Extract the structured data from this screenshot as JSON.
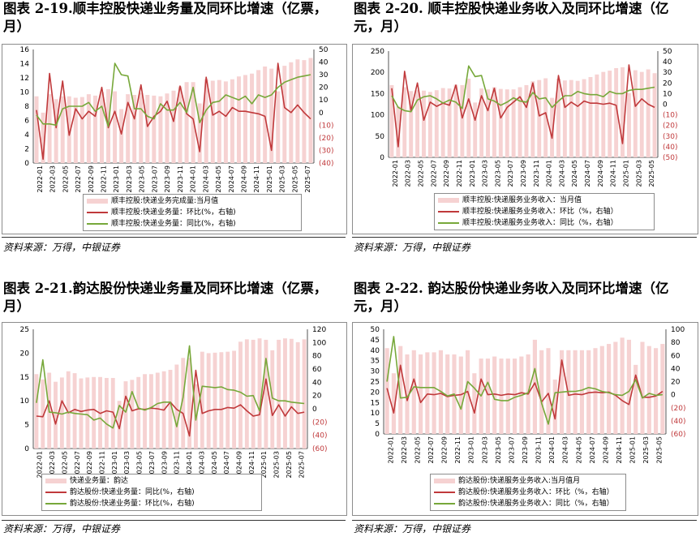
{
  "source_label": "资料来源：万得，中银证券",
  "colors": {
    "bar": "#f6d2d2",
    "red": "#c0393b",
    "green": "#77a83a",
    "axis_right": "#c0393b"
  },
  "chart_data": [
    {
      "id": "c1",
      "type": "bar+line",
      "title": "图表 2-19.顺丰控股快递业务量及同环比增速（亿票，月）",
      "left_axis": {
        "min": 0,
        "max": 16,
        "ticks": [
          "0",
          "2",
          "4",
          "6",
          "8",
          "10",
          "12",
          "14",
          "16"
        ]
      },
      "right_axis": {
        "min": -40,
        "max": 50,
        "ticks": [
          "(40)",
          "(30)",
          "(20)",
          "(10)",
          "0",
          "10",
          "20",
          "30",
          "40",
          "50"
        ]
      },
      "x_ticks": [
        "2022-01",
        "2022-03",
        "2022-05",
        "2022-07",
        "2022-09",
        "2022-11",
        "2023-01",
        "2023-03",
        "2023-05",
        "2023-07",
        "2023-09",
        "2023-11",
        "2024-01",
        "2024-03",
        "2024-05",
        "2024-07",
        "2024-09",
        "2024-11",
        "2025-01",
        "2025-03",
        "2025-05",
        "2025-07"
      ],
      "legend": [
        "顺丰控股:快递业务完成量:当月值",
        "顺丰控股:快递业务量：环比(%，右轴)",
        "顺丰控股:快递业务量：同比(%，右轴)"
      ],
      "bars": [
        9.4,
        7.1,
        9.7,
        9.0,
        9.4,
        9.4,
        9.2,
        9.3,
        9.7,
        9.5,
        10.0,
        10.4,
        10.1,
        7.6,
        9.7,
        9.6,
        9.9,
        9.6,
        9.5,
        9.4,
        9.8,
        10.2,
        10.8,
        11.4,
        11.4,
        8.4,
        11.8,
        11.6,
        11.7,
        11.5,
        11.8,
        12.2,
        12.4,
        12.6,
        13.1,
        13.6,
        13.3,
        10.1,
        13.7,
        14.2,
        14.6,
        14.5,
        14.8
      ],
      "mom": [
        2,
        -37,
        31,
        -12,
        25,
        -18,
        3,
        -5,
        1,
        -3,
        20,
        -12,
        1,
        -17,
        8,
        -5,
        22,
        -11,
        -3,
        1,
        9,
        -7,
        21,
        -1,
        -5,
        -31,
        28,
        -2,
        1,
        -3,
        4,
        1,
        1,
        0,
        -1,
        -3,
        -30,
        39,
        4,
        0,
        6,
        0,
        -5
      ],
      "yoy": [
        -2,
        -9,
        -9,
        -10,
        3,
        5,
        5,
        5,
        8,
        1,
        5,
        -11,
        39,
        30,
        29,
        3,
        3,
        -3,
        -5,
        7,
        2,
        2,
        8,
        0,
        20,
        -8,
        2,
        8,
        9,
        14,
        12,
        10,
        13,
        7,
        14,
        12,
        14,
        20,
        24,
        26,
        28,
        29,
        30
      ]
    },
    {
      "id": "c2",
      "type": "bar+line",
      "title": "图表 2-20. 顺丰控股快递业务收入及同环比增速（亿元，月）",
      "left_axis": {
        "min": 0,
        "max": 250,
        "ticks": [
          "0",
          "50",
          "100",
          "150",
          "200",
          "250"
        ]
      },
      "right_axis": {
        "min": -50,
        "max": 50,
        "ticks": [
          "(50)",
          "(40)",
          "(30)",
          "(20)",
          "(10)",
          "0",
          "10",
          "20",
          "30",
          "40",
          "50"
        ]
      },
      "x_ticks": [
        "2022-01",
        "2022-03",
        "2022-05",
        "2022-07",
        "2022-09",
        "2022-11",
        "2023-01",
        "2023-03",
        "2023-05",
        "2023-07",
        "2023-09",
        "2023-11",
        "2024-01",
        "2024-03",
        "2024-05",
        "2024-07",
        "2024-09",
        "2024-11",
        "2025-01",
        "2025-03",
        "2025-05"
      ],
      "legend": [
        "顺丰控股:快递服务业务收入：当月值",
        "顺丰控股:快递服务业务收入：环比（%，右轴）",
        "顺丰控股:快递服务业务收入：同比（%，右轴）"
      ],
      "bars": [
        170,
        120,
        165,
        156,
        158,
        157,
        154,
        158,
        163,
        162,
        171,
        170,
        185,
        129,
        162,
        160,
        165,
        161,
        160,
        160,
        165,
        170,
        179,
        182,
        186,
        140,
        185,
        181,
        182,
        180,
        184,
        189,
        195,
        201,
        204,
        210,
        212,
        151,
        205,
        201,
        207,
        198
      ],
      "mom": [
        15,
        -40,
        31,
        -6,
        20,
        -15,
        2,
        -2,
        1,
        -1,
        18,
        -13,
        5,
        -15,
        8,
        -6,
        15,
        -13,
        -3,
        2,
        7,
        -3,
        20,
        -11,
        -8,
        -32,
        27,
        -3,
        2,
        -2,
        3,
        1,
        1,
        0,
        1,
        -1,
        -37,
        37,
        -2,
        5,
        0,
        -3
      ],
      "yoy": [
        8,
        -3,
        -6,
        -7,
        4,
        7,
        8,
        5,
        1,
        4,
        2,
        -4,
        36,
        26,
        27,
        5,
        3,
        -1,
        2,
        6,
        3,
        2,
        11,
        5,
        6,
        -3,
        3,
        8,
        8,
        12,
        10,
        9,
        9,
        7,
        12,
        10,
        10,
        13,
        14,
        14,
        15,
        16
      ]
    },
    {
      "id": "c3",
      "type": "bar+line",
      "title": "图表 2-21.韵达股份快递业务量及同环比增速（亿票，月）",
      "left_axis": {
        "min": 0,
        "max": 25,
        "ticks": [
          "0",
          "5",
          "10",
          "15",
          "20",
          "25"
        ]
      },
      "right_axis": {
        "min": -60,
        "max": 120,
        "ticks": [
          "(60)",
          "(40)",
          "(20)",
          "0",
          "20",
          "40",
          "60",
          "80",
          "100",
          "120"
        ]
      },
      "x_ticks": [
        "2022-01",
        "2022-03",
        "2022-05",
        "2022-07",
        "2022-09",
        "2022-11",
        "2023-01",
        "2023-03",
        "2023-05",
        "2023-07",
        "2023-09",
        "2023-11",
        "2024-01",
        "2024-03",
        "2024-05",
        "2024-07",
        "2024-09",
        "2024-11",
        "2025-01",
        "2025-03",
        "2025-05",
        "2025-07"
      ],
      "legend": [
        "快递业务量：韵达",
        "韵达股份:快递业务量：同比(%，右轴)",
        "韵达股份:快递业务量：环比(%，右轴)"
      ],
      "bars": [
        15.6,
        14.5,
        15.9,
        14.0,
        14.9,
        16.2,
        15.8,
        14.7,
        14.9,
        15.0,
        15.0,
        14.8,
        14.8,
        10.0,
        14.1,
        14.4,
        15.0,
        15.6,
        15.6,
        15.9,
        16.2,
        16.5,
        17.6,
        19.0,
        19.0,
        13.5,
        20.3,
        20.0,
        20.1,
        20.2,
        20.3,
        20.5,
        22.4,
        22.9,
        22.8,
        23.1,
        22.8,
        20.6,
        22.8,
        23.1,
        23.0,
        22.3,
        22.9
      ],
      "red_series": [
        -11,
        -12,
        12,
        -23,
        12,
        -6,
        -1,
        -4,
        -2,
        -1,
        -7,
        -3,
        -5,
        -30,
        19,
        -3,
        0,
        -1,
        1,
        0,
        -2,
        10,
        -1,
        -7,
        -41,
        58,
        -7,
        -3,
        -1,
        -1,
        2,
        1,
        6,
        -3,
        -11,
        -9,
        45,
        -10,
        6,
        -11,
        3,
        -7,
        -5
      ],
      "green_series": [
        9,
        74,
        -5,
        -6,
        -8,
        -5,
        -7,
        -8,
        -9,
        -17,
        -14,
        -23,
        -29,
        5,
        -5,
        26,
        1,
        -2,
        2,
        8,
        10,
        10,
        -27,
        17,
        95,
        -17,
        34,
        33,
        32,
        33,
        29,
        28,
        25,
        19,
        20,
        -3,
        76,
        16,
        12,
        12,
        10,
        9,
        8
      ]
    },
    {
      "id": "c4",
      "type": "bar+line",
      "title": "图表 2-22. 韵达股份快递业务收入及同环比增速（亿元，月）",
      "left_axis": {
        "min": 0,
        "max": 50,
        "ticks": [
          "0",
          "5",
          "10",
          "15",
          "20",
          "25",
          "30",
          "35",
          "40",
          "45",
          "50"
        ]
      },
      "right_axis": {
        "min": -60,
        "max": 100,
        "ticks": [
          "(60)",
          "(40)",
          "(20)",
          "0",
          "20",
          "40",
          "60",
          "80",
          "100"
        ]
      },
      "x_ticks": [
        "2022-01",
        "2022-03",
        "2022-05",
        "2022-07",
        "2022-09",
        "2022-11",
        "2023-01",
        "2023-03",
        "2023-05",
        "2023-07",
        "2023-09",
        "2023-11",
        "2024-01",
        "2024-03",
        "2024-05",
        "2024-07",
        "2024-09",
        "2024-11",
        "2025-01",
        "2025-03",
        "2025-05"
      ],
      "legend": [
        "韵达股份:快递服务业务收入:当月值月",
        "韵达股份:快递服务业务收入：环比（%，右轴）",
        "韵达股份:快递服务业务收入：同比（%，右轴）"
      ],
      "bars": [
        41,
        29,
        42,
        38,
        40,
        38,
        39,
        39,
        40,
        38,
        38,
        37,
        40,
        29,
        36,
        36,
        37,
        36,
        36,
        36,
        37,
        38,
        45,
        40,
        41,
        26,
        40,
        40,
        40,
        40,
        40,
        41,
        42,
        43,
        44,
        46,
        45,
        33,
        44,
        42,
        41,
        43
      ],
      "mom": [
        10,
        -28,
        45,
        -9,
        24,
        -12,
        1,
        0,
        2,
        -3,
        -1,
        0,
        5,
        -28,
        24,
        0,
        1,
        -1,
        1,
        0,
        3,
        1,
        18,
        -11,
        2,
        -37,
        53,
        -1,
        1,
        0,
        3,
        4,
        3,
        4,
        -1,
        -9,
        -15,
        30,
        -4,
        -4,
        -2,
        5
      ],
      "yoy": [
        20,
        89,
        -5,
        -4,
        12,
        11,
        11,
        11,
        5,
        -2,
        1,
        -22,
        20,
        10,
        -2,
        19,
        -7,
        -9,
        -9,
        -4,
        -1,
        3,
        40,
        -13,
        -45,
        3,
        4,
        5,
        5,
        7,
        11,
        9,
        5,
        3,
        0,
        -1,
        5,
        23,
        -5,
        2,
        -1,
        0
      ]
    }
  ]
}
